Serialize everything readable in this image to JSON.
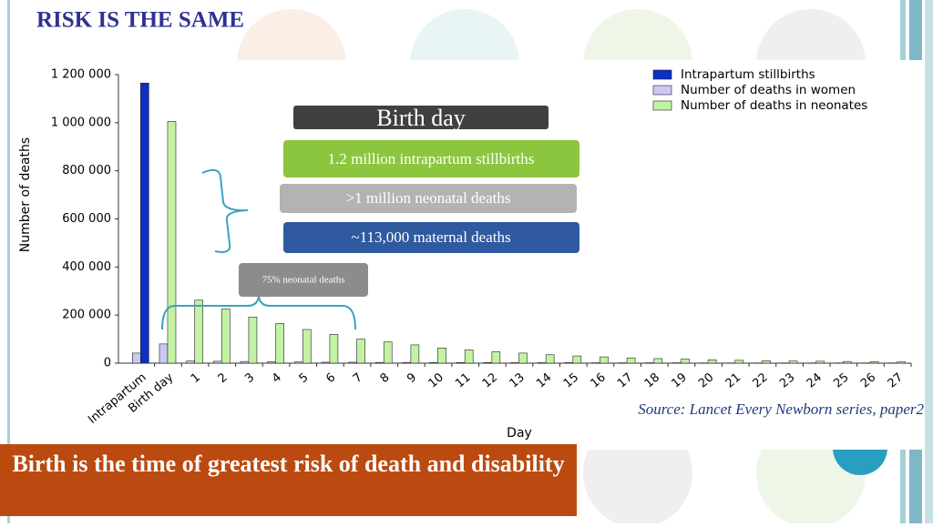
{
  "slide_title": "RISK IS THE SAME",
  "banner": "Birth is the time of greatest risk of death and disability",
  "source": "Source: Lancet Every Newborn series, paper2",
  "chart_data": {
    "type": "bar",
    "x_label": "Day",
    "y_label": "Number of deaths",
    "categories": [
      "Intrapartum",
      "Birth day",
      "1",
      "2",
      "3",
      "4",
      "5",
      "6",
      "7",
      "8",
      "9",
      "10",
      "11",
      "12",
      "13",
      "14",
      "15",
      "16",
      "17",
      "18",
      "19",
      "20",
      "21",
      "22",
      "23",
      "24",
      "25",
      "26",
      "27"
    ],
    "series": [
      {
        "name": "Intrapartum stillbirths",
        "color": "#0c2fc4",
        "values": [
          1165000,
          null,
          null,
          null,
          null,
          null,
          null,
          null,
          null,
          null,
          null,
          null,
          null,
          null,
          null,
          null,
          null,
          null,
          null,
          null,
          null,
          null,
          null,
          null,
          null,
          null,
          null,
          null,
          null
        ]
      },
      {
        "name": "Number of deaths in women",
        "color": "#cbc8f2",
        "values": [
          42000,
          80000,
          9000,
          8000,
          7000,
          6000,
          5000,
          4000,
          4000,
          3000,
          3000,
          3000,
          2500,
          2500,
          2000,
          2000,
          2000,
          1500,
          1500,
          1500,
          1500,
          1000,
          1000,
          1000,
          1000,
          1000,
          1000,
          1000,
          1000
        ]
      },
      {
        "name": "Number of deaths in neonates",
        "color": "#c3f2a4",
        "values": [
          null,
          1005000,
          262000,
          225000,
          192000,
          165000,
          140000,
          120000,
          100000,
          88000,
          76000,
          63000,
          55000,
          47000,
          42000,
          35000,
          30000,
          26000,
          22000,
          19000,
          17000,
          14000,
          12000,
          10000,
          9000,
          8000,
          7000,
          6000,
          5000
        ]
      }
    ],
    "ylim": [
      0,
      1200000
    ],
    "yticks": [
      0,
      {
        "value": 200000,
        "label": "200 000"
      },
      {
        "value": 400000,
        "label": "400 000"
      },
      {
        "value": 600000,
        "label": "600 000"
      },
      {
        "value": 800000,
        "label": "800 000"
      },
      {
        "value": 1000000,
        "label": "1 000 000"
      },
      {
        "value": 1200000,
        "label": "1 200 000"
      }
    ],
    "legend": "top-right",
    "annotations": [
      "Birth day",
      "1.2 million intrapartum stillbirths",
      ">1 million neonatal deaths",
      "~113,000 maternal deaths",
      "75% neonatal deaths"
    ]
  }
}
